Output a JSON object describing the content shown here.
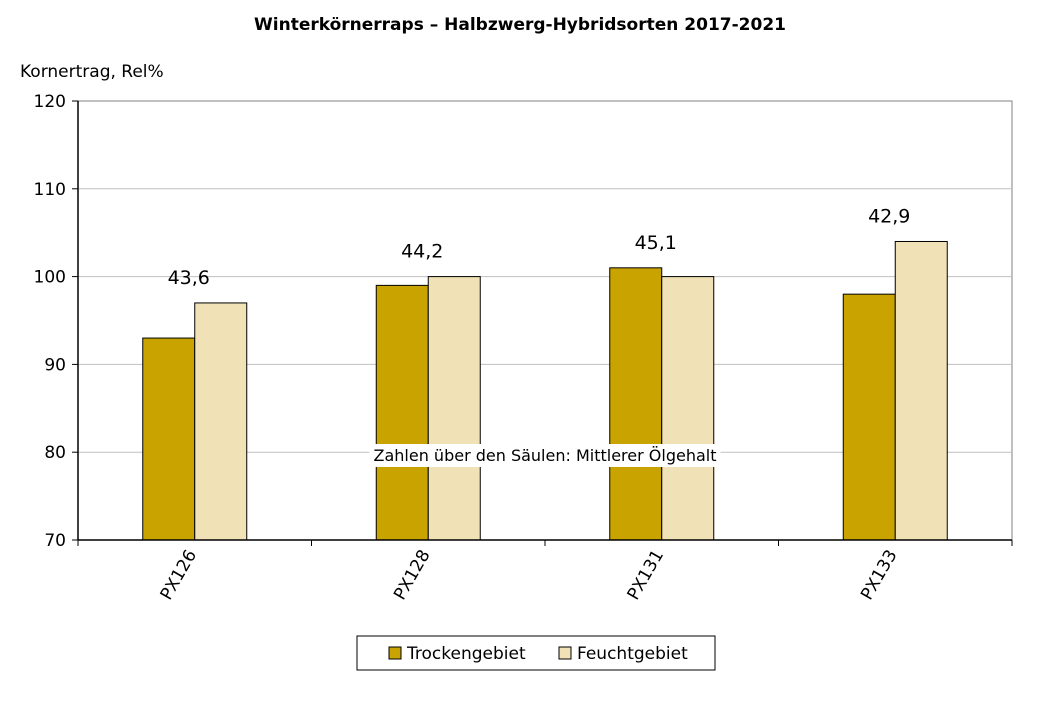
{
  "chart_data": {
    "type": "bar",
    "title": "Winterkörnerraps – Halbzwerg-Hybridsorten 2017-2021",
    "ylabel": "Kornertrag, Rel%",
    "xlabel": "",
    "categories": [
      "PX126",
      "PX128",
      "PX131",
      "PX133"
    ],
    "series": [
      {
        "name": "Trockengebiet",
        "values": [
          93,
          99,
          101,
          98
        ],
        "color": "#C9A400"
      },
      {
        "name": "Feuchtgebiet",
        "values": [
          97,
          100,
          100,
          104
        ],
        "color": "#F0E2B6"
      }
    ],
    "bar_labels": [
      "43,6",
      "44,2",
      "45,1",
      "42,9"
    ],
    "annotation": "Zahlen über den Säulen: Mittlerer Ölgehalt",
    "ylim": [
      70,
      120
    ],
    "yticks": [
      70,
      80,
      90,
      100,
      110,
      120
    ],
    "grid": true,
    "legend_position": "bottom"
  }
}
